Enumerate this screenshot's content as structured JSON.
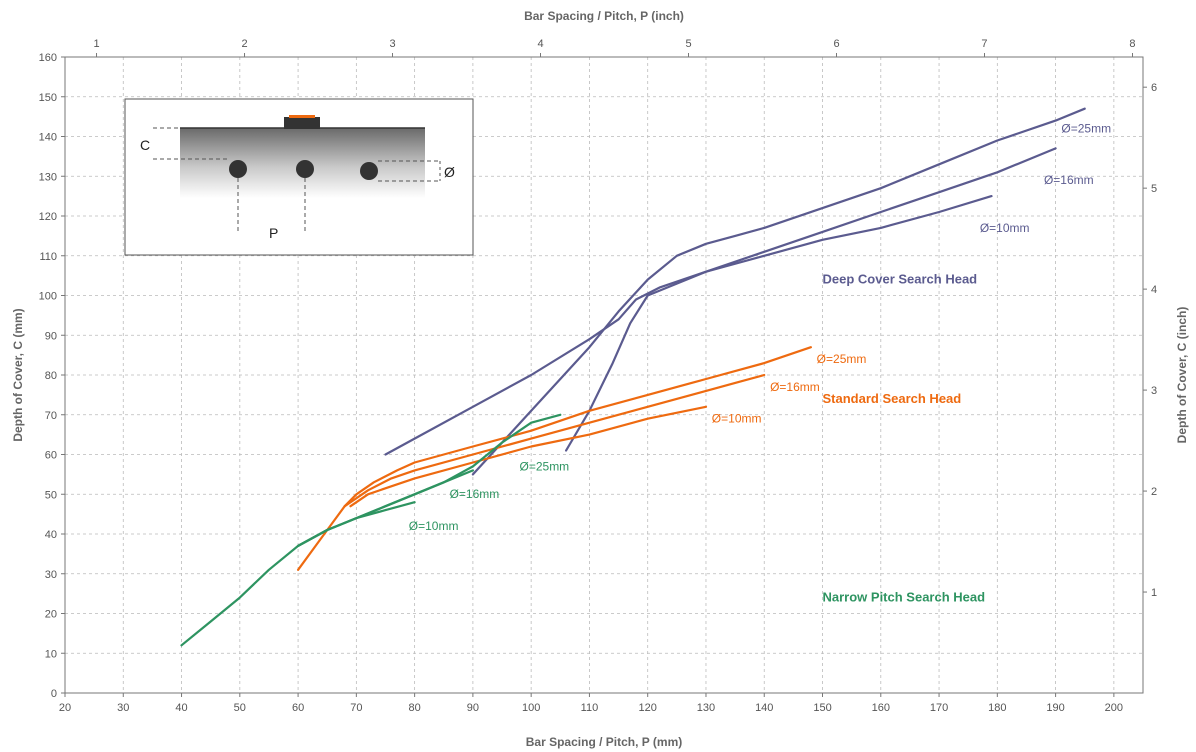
{
  "chart_data": {
    "type": "line",
    "title": "",
    "xlabel": "Bar Spacing / Pitch, P (mm)",
    "ylabel": "Depth of Cover, C (mm)",
    "x2label": "Bar Spacing / Pitch, P (inch)",
    "y2label": "Depth of Cover, C (inch)",
    "xlim": [
      20,
      205
    ],
    "ylim": [
      0,
      160
    ],
    "x2lim": [
      0.787,
      8.071
    ],
    "y2lim": [
      0,
      6.299
    ],
    "xticks": [
      20,
      30,
      40,
      50,
      60,
      70,
      80,
      90,
      100,
      110,
      120,
      130,
      140,
      150,
      160,
      170,
      180,
      190,
      200
    ],
    "yticks": [
      0,
      10,
      20,
      30,
      40,
      50,
      60,
      70,
      80,
      90,
      100,
      110,
      120,
      130,
      140,
      150,
      160
    ],
    "x2ticks": [
      1,
      2,
      3,
      4,
      5,
      6,
      7,
      8
    ],
    "y2ticks": [
      1,
      2,
      3,
      4,
      5,
      6
    ],
    "grid": true,
    "colors": {
      "deep": "#5b5b8f",
      "standard": "#ee6a10",
      "narrow": "#2e9461"
    },
    "groups": [
      {
        "name": "Deep Cover Search Head",
        "color": "#5b5b8f",
        "label_x": 150,
        "label_y": 103
      },
      {
        "name": "Standard Search Head",
        "color": "#ee6a10",
        "label_x": 150,
        "label_y": 73
      },
      {
        "name": "Narrow Pitch Search Head",
        "color": "#2e9461",
        "label_x": 150,
        "label_y": 23
      }
    ],
    "series": [
      {
        "name": "Ø=25mm",
        "group": "Deep Cover Search Head",
        "color": "#5b5b8f",
        "x": [
          90,
          95,
          100,
          105,
          110,
          115,
          120,
          125,
          130,
          135,
          140,
          150,
          160,
          170,
          180,
          190,
          195
        ],
        "y": [
          55,
          63,
          71,
          79,
          87,
          96,
          104,
          110,
          113,
          115,
          117,
          122,
          127,
          133,
          139,
          144,
          147
        ],
        "label_x": 191,
        "label_y": 141
      },
      {
        "name": "Ø=16mm",
        "group": "Deep Cover Search Head",
        "color": "#5b5b8f",
        "x": [
          75,
          80,
          90,
          100,
          110,
          115,
          118,
          122,
          130,
          140,
          150,
          160,
          170,
          180,
          190
        ],
        "y": [
          60,
          64,
          72,
          80,
          89,
          94,
          99,
          102,
          106,
          111,
          116,
          121,
          126,
          131,
          137
        ],
        "label_x": 188,
        "label_y": 128
      },
      {
        "name": "Ø=10mm",
        "group": "Deep Cover Search Head",
        "color": "#5b5b8f",
        "x": [
          106,
          110,
          114,
          117,
          120,
          125,
          130,
          140,
          150,
          160,
          170,
          179
        ],
        "y": [
          61,
          71,
          83,
          93,
          100,
          103,
          106,
          110,
          114,
          117,
          121,
          125
        ],
        "label_x": 177,
        "label_y": 116
      },
      {
        "name": "Ø=25mm",
        "group": "Standard Search Head",
        "color": "#ee6a10",
        "x": [
          60,
          63,
          66,
          68,
          70,
          73,
          77,
          80,
          90,
          100,
          110,
          120,
          130,
          140,
          148
        ],
        "y": [
          31,
          37,
          43,
          47,
          50,
          53,
          56,
          58,
          62,
          66,
          71,
          75,
          79,
          83,
          87
        ],
        "label_x": 149,
        "label_y": 83
      },
      {
        "name": "Ø=16mm",
        "group": "Standard Search Head",
        "color": "#ee6a10",
        "x": [
          68,
          72,
          76,
          80,
          90,
          100,
          110,
          120,
          130,
          140
        ],
        "y": [
          47,
          51,
          54,
          56,
          60,
          64,
          68,
          72,
          76,
          80
        ],
        "label_x": 141,
        "label_y": 76
      },
      {
        "name": "Ø=10mm",
        "group": "Standard Search Head",
        "color": "#ee6a10",
        "x": [
          69,
          72,
          76,
          80,
          90,
          100,
          110,
          120,
          130
        ],
        "y": [
          47,
          50,
          52,
          54,
          58,
          62,
          65,
          69,
          72
        ],
        "label_x": 131,
        "label_y": 68
      },
      {
        "name": "Ø=25mm",
        "group": "Narrow Pitch Search Head",
        "color": "#2e9461",
        "x": [
          40,
          45,
          50,
          55,
          60,
          65,
          70,
          75,
          80,
          85,
          90,
          95,
          100,
          105
        ],
        "y": [
          12,
          18,
          24,
          31,
          37,
          41,
          44,
          47,
          50,
          53,
          57,
          63,
          68,
          70
        ],
        "label_x": 98,
        "label_y": 56
      },
      {
        "name": "Ø=16mm",
        "group": "Narrow Pitch Search Head",
        "color": "#2e9461",
        "x": [
          60,
          65,
          70,
          75,
          80,
          85,
          90
        ],
        "y": [
          37,
          41,
          44,
          47,
          50,
          53,
          56
        ],
        "label_x": 86,
        "label_y": 49
      },
      {
        "name": "Ø=10mm",
        "group": "Narrow Pitch Search Head",
        "color": "#2e9461",
        "x": [
          60,
          65,
          70,
          75,
          80
        ],
        "y": [
          37,
          41,
          44,
          46,
          48
        ],
        "label_x": 79,
        "label_y": 41
      }
    ],
    "inset": {
      "labels": {
        "cover": "C",
        "pitch": "P",
        "diameter": "Ø"
      }
    }
  }
}
